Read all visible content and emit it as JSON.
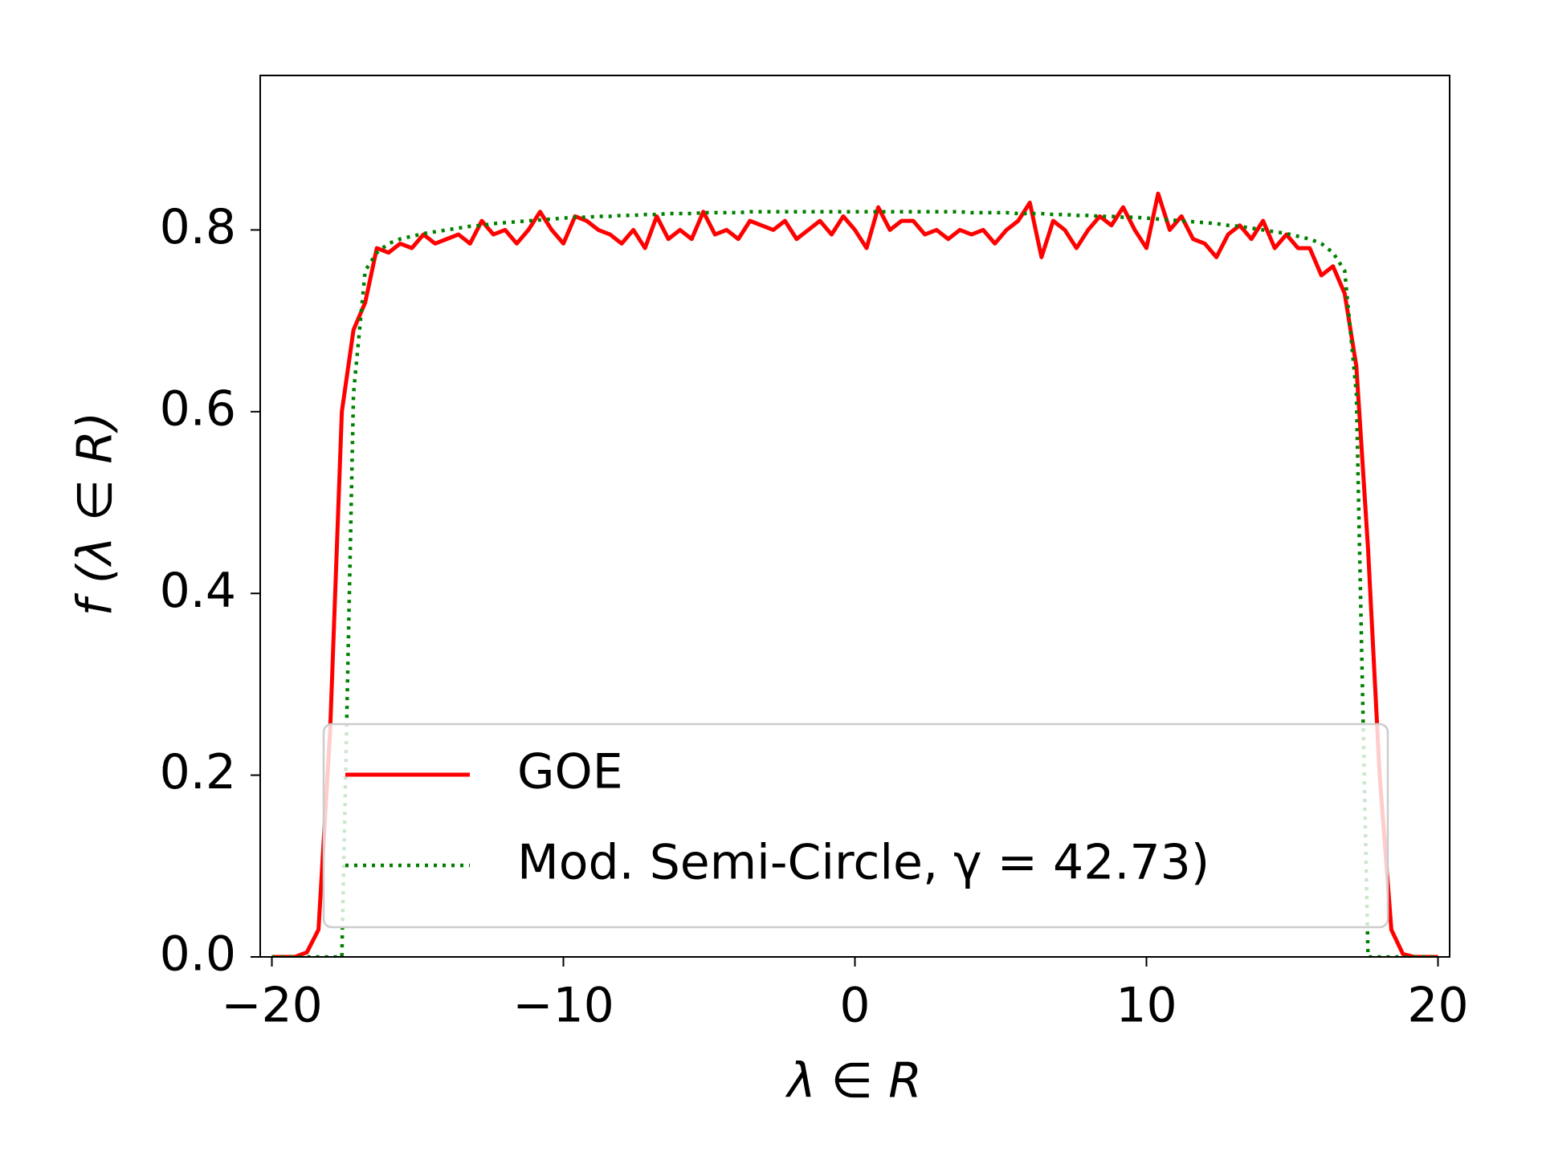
{
  "chart_data": {
    "type": "line",
    "xlabel": "λ ∈ R",
    "ylabel": "f   (λ ∈ R)",
    "x": [
      -20,
      -19.6,
      -19.2,
      -18.8,
      -18.4,
      -18,
      -17.6,
      -17.2,
      -16.8,
      -16.4,
      -16,
      -15.6,
      -15.2,
      -14.8,
      -14.4,
      -14,
      -13.6,
      -13.2,
      -12.8,
      -12.4,
      -12,
      -11.6,
      -11.2,
      -10.8,
      -10.4,
      -10,
      -9.6,
      -9.2,
      -8.8,
      -8.4,
      -8,
      -7.6,
      -7.2,
      -6.8,
      -6.4,
      -6,
      -5.6,
      -5.2,
      -4.8,
      -4.4,
      -4,
      -3.6,
      -3.2,
      -2.8,
      -2.4,
      -2,
      -1.6,
      -1.2,
      -0.8,
      -0.4,
      0,
      0.4,
      0.8,
      1.2,
      1.6,
      2,
      2.4,
      2.8,
      3.2,
      3.6,
      4,
      4.4,
      4.8,
      5.2,
      5.6,
      6,
      6.4,
      6.8,
      7.2,
      7.6,
      8,
      8.4,
      8.8,
      9.2,
      9.6,
      10,
      10.4,
      10.8,
      11.2,
      11.6,
      12,
      12.4,
      12.8,
      13.2,
      13.6,
      14,
      14.4,
      14.8,
      15.2,
      15.6,
      16,
      16.4,
      16.8,
      17.2,
      17.6,
      18,
      18.4,
      18.8,
      19.2,
      19.6,
      20
    ],
    "series": [
      {
        "name": "GOE",
        "color": "#ff0000",
        "style": "solid",
        "values": [
          0,
          0,
          0,
          0.005,
          0.03,
          0.25,
          0.6,
          0.69,
          0.72,
          0.78,
          0.775,
          0.785,
          0.78,
          0.795,
          0.785,
          0.79,
          0.795,
          0.785,
          0.81,
          0.795,
          0.8,
          0.785,
          0.8,
          0.82,
          0.8,
          0.785,
          0.815,
          0.81,
          0.8,
          0.795,
          0.785,
          0.8,
          0.78,
          0.815,
          0.79,
          0.8,
          0.79,
          0.82,
          0.795,
          0.8,
          0.79,
          0.81,
          0.805,
          0.8,
          0.81,
          0.79,
          0.8,
          0.81,
          0.795,
          0.815,
          0.8,
          0.78,
          0.825,
          0.8,
          0.81,
          0.81,
          0.795,
          0.8,
          0.79,
          0.8,
          0.795,
          0.8,
          0.785,
          0.8,
          0.81,
          0.83,
          0.77,
          0.81,
          0.8,
          0.78,
          0.8,
          0.815,
          0.805,
          0.825,
          0.8,
          0.78,
          0.84,
          0.8,
          0.815,
          0.79,
          0.785,
          0.77,
          0.795,
          0.805,
          0.79,
          0.81,
          0.78,
          0.795,
          0.78,
          0.78,
          0.75,
          0.76,
          0.73,
          0.65,
          0.45,
          0.2,
          0.03,
          0.003,
          0,
          0,
          0
        ]
      },
      {
        "name": "Mod. Semi-Circle, γ = 42.73)",
        "color": "#008000",
        "style": "dotted",
        "values": [
          0,
          0,
          0,
          0,
          0,
          0,
          0,
          0.62,
          0.755,
          0.775,
          0.785,
          0.79,
          0.793,
          0.796,
          0.798,
          0.8,
          0.802,
          0.804,
          0.805,
          0.807,
          0.808,
          0.809,
          0.81,
          0.811,
          0.812,
          0.813,
          0.814,
          0.814,
          0.815,
          0.815,
          0.816,
          0.816,
          0.817,
          0.817,
          0.818,
          0.818,
          0.818,
          0.819,
          0.819,
          0.819,
          0.819,
          0.82,
          0.82,
          0.82,
          0.82,
          0.82,
          0.82,
          0.82,
          0.82,
          0.82,
          0.82,
          0.82,
          0.82,
          0.82,
          0.82,
          0.82,
          0.82,
          0.82,
          0.82,
          0.82,
          0.819,
          0.819,
          0.819,
          0.819,
          0.818,
          0.818,
          0.818,
          0.817,
          0.817,
          0.816,
          0.816,
          0.815,
          0.815,
          0.814,
          0.814,
          0.813,
          0.812,
          0.811,
          0.81,
          0.809,
          0.808,
          0.807,
          0.805,
          0.804,
          0.802,
          0.8,
          0.798,
          0.796,
          0.793,
          0.79,
          0.785,
          0.775,
          0.755,
          0.62,
          0,
          0,
          0,
          0,
          0,
          0,
          0
        ]
      }
    ],
    "xlim": [
      -20.4,
      20.4
    ],
    "ylim": [
      0,
      0.97
    ],
    "xticks": [
      {
        "value": -20,
        "label": "−20"
      },
      {
        "value": -10,
        "label": "−10"
      },
      0,
      10,
      20
    ],
    "yticks": [
      {
        "value": 0,
        "label": "0.0"
      },
      0.2,
      0.4,
      0.6,
      0.8
    ],
    "legend": "lower center",
    "grid": false
  }
}
